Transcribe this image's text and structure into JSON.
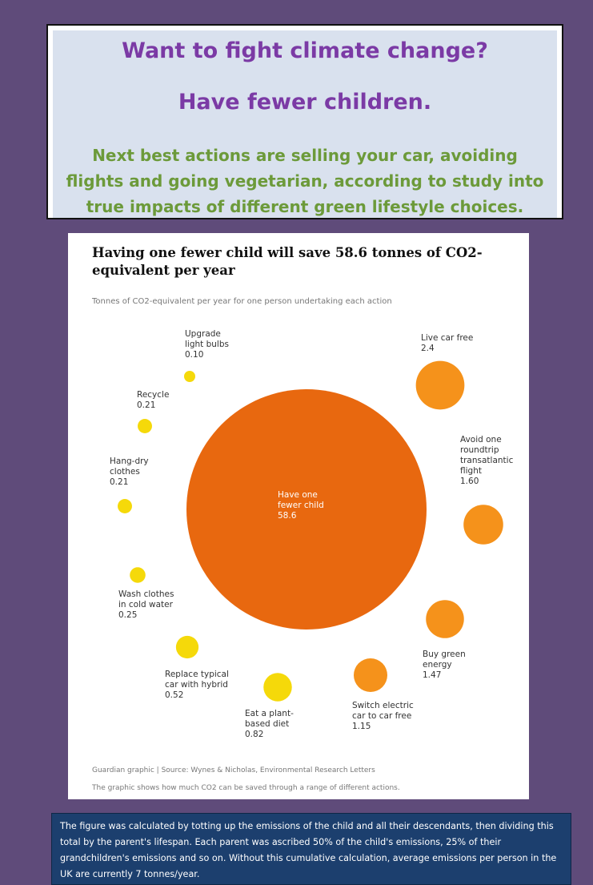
{
  "headline": {
    "line1": "Want to fight climate change?",
    "line2": "Have fewer children.",
    "line3": "Next best actions are selling your car, avoiding flights and going vegetarian, according to study into true impacts of different green lifestyle choices."
  },
  "chart_data": {
    "type": "bubble",
    "title": "Having one fewer child will save 58.6 tonnes of CO2-equivalent per year",
    "subtitle": "Tonnes of CO2-equivalent per year for one person undertaking each action",
    "source": "Guardian graphic | Source: Wynes & Nicholas, Environmental Research Letters",
    "note": "The graphic shows how much CO2 can be saved through a range of different actions.",
    "items": [
      {
        "label": "Have one fewer child",
        "value_text": "58.6",
        "value": 58.6,
        "color": "#e8680f"
      },
      {
        "label": "Live car free",
        "value_text": "2.4",
        "value": 2.4,
        "color": "#f5921b"
      },
      {
        "label": "Avoid one roundtrip transatlantic flight",
        "value_text": "1.60",
        "value": 1.6,
        "color": "#f5921b"
      },
      {
        "label": "Buy green energy",
        "value_text": "1.47",
        "value": 1.47,
        "color": "#f5921b"
      },
      {
        "label": "Switch electric car to car free",
        "value_text": "1.15",
        "value": 1.15,
        "color": "#f5921b"
      },
      {
        "label": "Eat a plant-based diet",
        "value_text": "0.82",
        "value": 0.82,
        "color": "#f5d90a"
      },
      {
        "label": "Replace typical car with hybrid",
        "value_text": "0.52",
        "value": 0.52,
        "color": "#f5d90a"
      },
      {
        "label": "Wash clothes in cold water",
        "value_text": "0.25",
        "value": 0.25,
        "color": "#f5d90a"
      },
      {
        "label": "Hang-dry clothes",
        "value_text": "0.21",
        "value": 0.21,
        "color": "#f5d90a"
      },
      {
        "label": "Recycle",
        "value_text": "0.21",
        "value": 0.21,
        "color": "#f5d90a"
      },
      {
        "label": "Upgrade light bulbs",
        "value_text": "0.10",
        "value": 0.1,
        "color": "#f5d90a"
      }
    ]
  },
  "footnote": "The figure was calculated by totting up the emissions of the child and all their descendants, then dividing this total by the parent's lifespan. Each parent was ascribed 50% of the child's emissions, 25% of their grandchildren's emissions and so on. Without this cumulative calculation, average emissions per person in the UK are currently 7 tonnes/year."
}
